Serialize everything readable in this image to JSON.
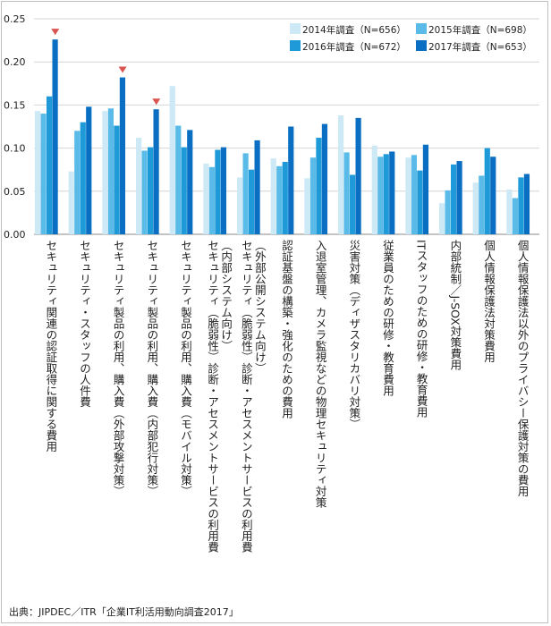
{
  "chart_data": {
    "type": "bar",
    "title": "",
    "xlabel": "",
    "ylabel": "",
    "ylim": [
      0,
      0.25
    ],
    "yticks": [
      "0.00",
      "0.05",
      "0.10",
      "0.15",
      "0.20",
      "0.25"
    ],
    "grid": true,
    "legend_position": "top-right",
    "categories": [
      "セキュリティ関連の認証取得に関する費用",
      "セキュリティ・スタッフの人件費",
      "セキュリティ製品の利用、購入費（外部攻撃対策）",
      "セキュリティ製品の利用、購入費（内部犯行対策）",
      "セキュリティ製品の利用、購入費（モバイル対策）",
      "セキュリティ（脆弱性）診断・アセスメントサービスの利用費（内部システム向け）",
      "セキュリティ（脆弱性）診断・アセスメントサービスの利用費（外部公開システム向け）",
      "認証基盤の構築・強化のための費用",
      "入退室管理、カメラ監視などの物理セキュリティ対策",
      "災害対策（ディザスタリカバリ対策）",
      "従業員のための研修・教育費用",
      "ITスタッフのための研修・教育費用",
      "内部統制／J-SOX対策費用",
      "個人情報保護法対策費用",
      "個人情報保護法以外のプライバシー保護対策の費用"
    ],
    "category_lines": [
      [
        "セキュリティ関連の認証取得に関する費用"
      ],
      [
        "セキュリティ・スタッフの人件費"
      ],
      [
        "セキュリティ製品の利用、購入費（外部攻撃対策）"
      ],
      [
        "セキュリティ製品の利用、購入費（内部犯行対策）"
      ],
      [
        "セキュリティ製品の利用、購入費（モバイル対策）"
      ],
      [
        "セキュリティ（脆弱性）診断・アセスメントサービスの利用費",
        "（内部システム向け）"
      ],
      [
        "セキュリティ（脆弱性）診断・アセスメントサービスの利用費",
        "（外部公開システム向け）"
      ],
      [
        "認証基盤の構築・強化のための費用"
      ],
      [
        "入退室管理、カメラ監視などの物理セキュリティ対策"
      ],
      [
        "災害対策（ディザスタリカバリ対策）"
      ],
      [
        "従業員のための研修・教育費用"
      ],
      [
        "ITスタッフのための研修・教育費用"
      ],
      [
        "内部統制／J-SOX対策費用"
      ],
      [
        "個人情報保護法対策費用"
      ],
      [
        "個人情報保護法以外のプライバシー保護対策の費用"
      ]
    ],
    "series": [
      {
        "name": "2014年調査（N=656）",
        "color": "#cde9f6",
        "values": [
          0.143,
          0.073,
          0.143,
          0.112,
          0.172,
          0.082,
          0.066,
          0.088,
          0.065,
          0.138,
          0.103,
          0.089,
          0.036,
          0.06,
          0.052
        ]
      },
      {
        "name": "2015年調査（N=698）",
        "color": "#5bbbe8",
        "values": [
          0.14,
          0.12,
          0.146,
          0.097,
          0.126,
          0.078,
          0.094,
          0.079,
          0.089,
          0.095,
          0.09,
          0.092,
          0.051,
          0.068,
          0.042
        ]
      },
      {
        "name": "2016年調査（N=672）",
        "color": "#1e9ad8",
        "values": [
          0.16,
          0.13,
          0.126,
          0.101,
          0.101,
          0.098,
          0.075,
          0.084,
          0.112,
          0.069,
          0.093,
          0.074,
          0.081,
          0.1,
          0.066
        ]
      },
      {
        "name": "2017年調査（N=653）",
        "color": "#0a6fc2",
        "values": [
          0.226,
          0.148,
          0.182,
          0.145,
          0.121,
          0.101,
          0.109,
          0.125,
          0.128,
          0.135,
          0.096,
          0.104,
          0.085,
          0.09,
          0.07
        ]
      }
    ],
    "highlights": [
      0,
      2,
      3
    ],
    "highlight_color": "#d9534f"
  },
  "footer": {
    "source": "出典：JIPDEC／ITR「企業IT利活用動向調査2017」"
  }
}
